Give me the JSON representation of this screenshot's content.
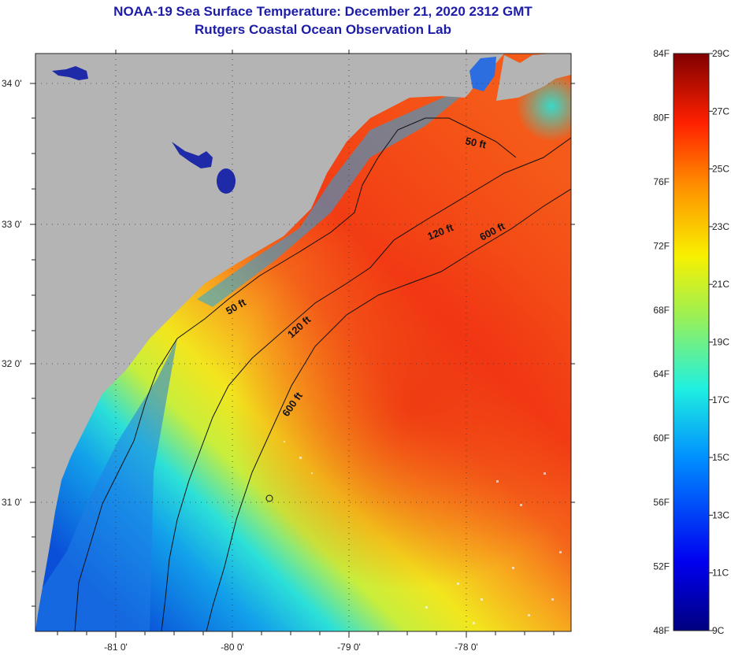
{
  "header": {
    "title": "NOAA-19 Sea Surface Temperature:  December 21, 2020 2312 GMT",
    "subtitle": "Rutgers Coastal Ocean Observation Lab"
  },
  "map": {
    "lat_ticks": [
      "34 0'",
      "33 0'",
      "32 0'",
      "31 0'"
    ],
    "lon_ticks": [
      "-81 0'",
      "-80 0'",
      "-79 0'",
      "-78 0'"
    ],
    "contours": [
      {
        "label": "50 ft",
        "depth_ft": 50
      },
      {
        "label": "50 ft",
        "depth_ft": 50
      },
      {
        "label": "120 ft",
        "depth_ft": 120
      },
      {
        "label": "120 ft",
        "depth_ft": 120
      },
      {
        "label": "600 ft",
        "depth_ft": 600
      },
      {
        "label": "600 ft",
        "depth_ft": 600
      }
    ],
    "colors": {
      "land": "#b4b4b4",
      "water_shallow": "#0a5adc",
      "water_mid": "#f0e61e",
      "water_warm": "#f53c14"
    }
  },
  "colorbar": {
    "fahrenheit": [
      "84F",
      "80F",
      "76F",
      "72F",
      "68F",
      "64F",
      "60F",
      "56F",
      "52F",
      "48F"
    ],
    "celsius": [
      "29C",
      "27C",
      "25C",
      "23C",
      "21C",
      "19C",
      "17C",
      "15C",
      "13C",
      "11C",
      "9C"
    ]
  }
}
